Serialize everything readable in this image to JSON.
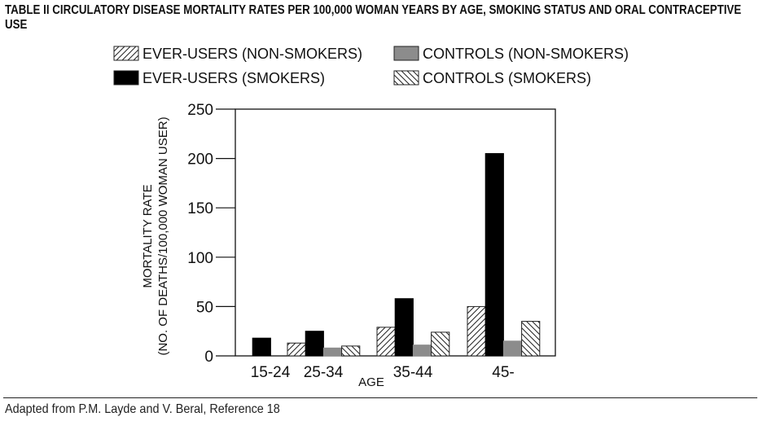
{
  "title": "TABLE II CIRCULATORY DISEASE MORTALITY RATES PER 100,000 WOMAN YEARS BY AGE, SMOKING STATUS AND ORAL CONTRACEPTIVE USE",
  "footer": "Adapted from P.M. Layde and V. Beral, Reference 18",
  "chart_data": {
    "type": "bar",
    "title": "TABLE II CIRCULATORY DISEASE MORTALITY RATES PER 100,000 WOMAN YEARS BY AGE, SMOKING STATUS AND ORAL CONTRACEPTIVE USE",
    "xlabel": "AGE",
    "ylabel_line1": "MORTALITY RATE",
    "ylabel_line2": "(NO. OF DEATHS/100,000 WOMAN USER)",
    "ylim": [
      0,
      250
    ],
    "yticks": [
      "0",
      "50",
      "100",
      "150",
      "200",
      "250"
    ],
    "categories": [
      "15-24",
      "25-34",
      "35-44",
      "45-"
    ],
    "legend_placement": "top",
    "series": [
      {
        "name": "EVER-USERS (NON-SMOKERS)",
        "pattern": "forward-hatch",
        "values": [
          null,
          13,
          29,
          50
        ]
      },
      {
        "name": "EVER-USERS (SMOKERS)",
        "pattern": "solid",
        "color": "#000000",
        "values": [
          18,
          25,
          58,
          205
        ]
      },
      {
        "name": "CONTROLS (NON-SMOKERS)",
        "pattern": "solid",
        "color": "#8c8c8c",
        "values": [
          null,
          8,
          11,
          15
        ]
      },
      {
        "name": "CONTROLS (SMOKERS)",
        "pattern": "back-hatch",
        "values": [
          null,
          10,
          24,
          35
        ]
      }
    ]
  }
}
